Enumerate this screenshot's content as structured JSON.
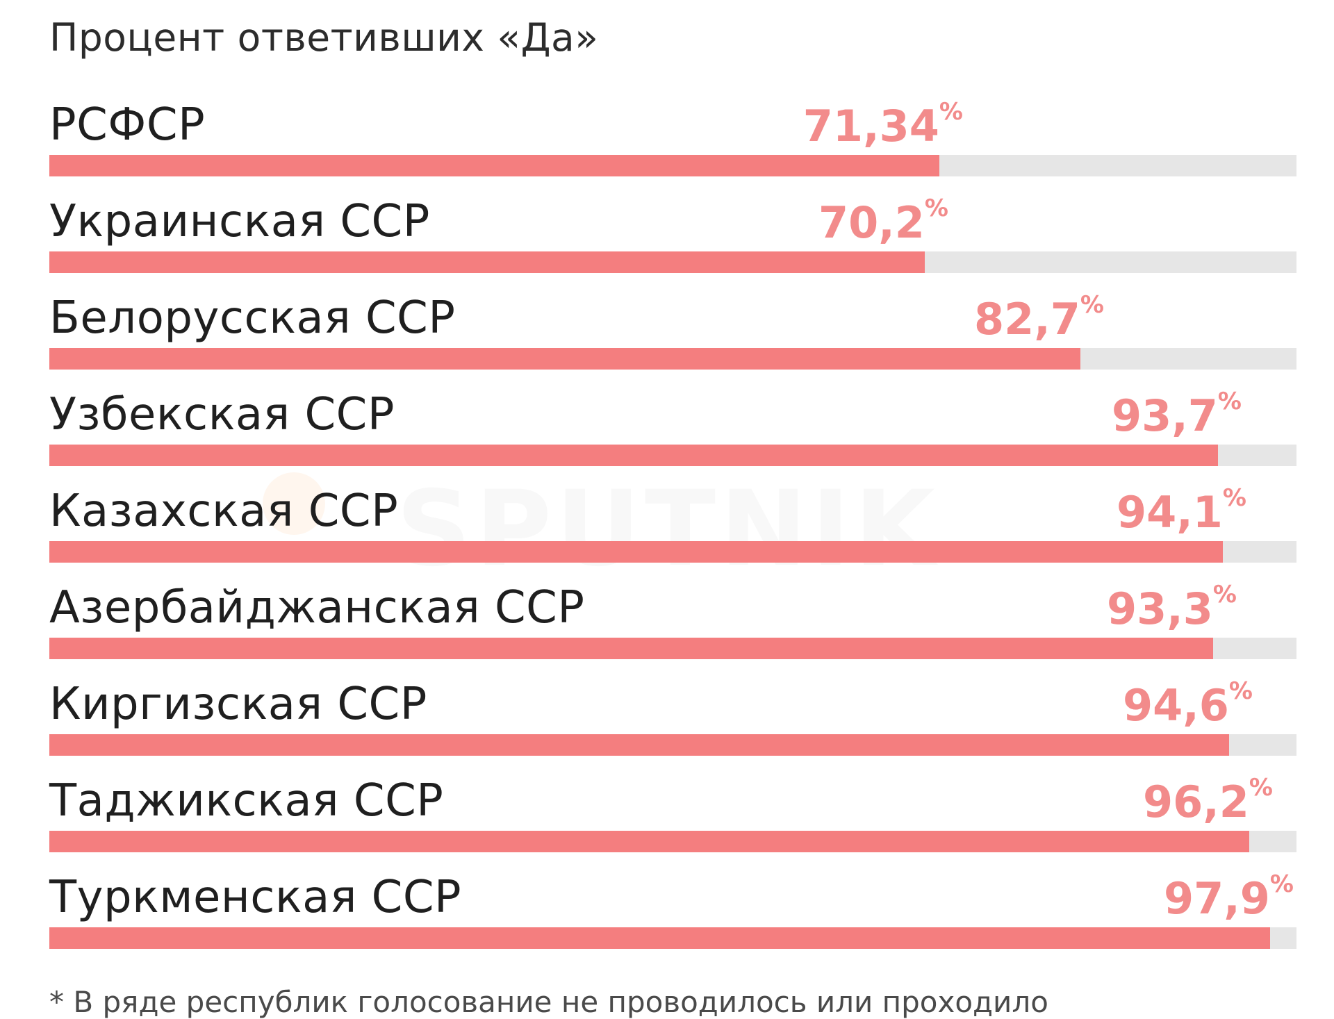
{
  "subtitle": "Процент ответивших «Да»",
  "percent_sign": "%",
  "watermark": "SPUTNIK",
  "footnote": "* В ряде республик голосование не проводилось или проходило",
  "colors": {
    "bar_fill": "#f47e7f",
    "bar_track": "#e6e6e6",
    "value_text": "#f28b8b",
    "label_text": "#1f1f1f"
  },
  "chart_data": {
    "type": "bar",
    "orientation": "horizontal",
    "subtitle": "Процент ответивших «Да»",
    "xlim": [
      0,
      100
    ],
    "grid": false,
    "legend": "none",
    "categories": [
      "РСФСР",
      "Украинская ССР",
      "Белорусская ССР",
      "Узбекская ССР",
      "Казахская ССР",
      "Азербайджанская ССР",
      "Киргизская ССР",
      "Таджикская ССР",
      "Туркменская ССР"
    ],
    "values": [
      71.34,
      70.2,
      82.7,
      93.7,
      94.1,
      93.3,
      94.6,
      96.2,
      97.9
    ],
    "value_labels": [
      "71,34",
      "70,2",
      "82,7",
      "93,7",
      "94,1",
      "93,3",
      "94,6",
      "96,2",
      "97,9"
    ]
  }
}
